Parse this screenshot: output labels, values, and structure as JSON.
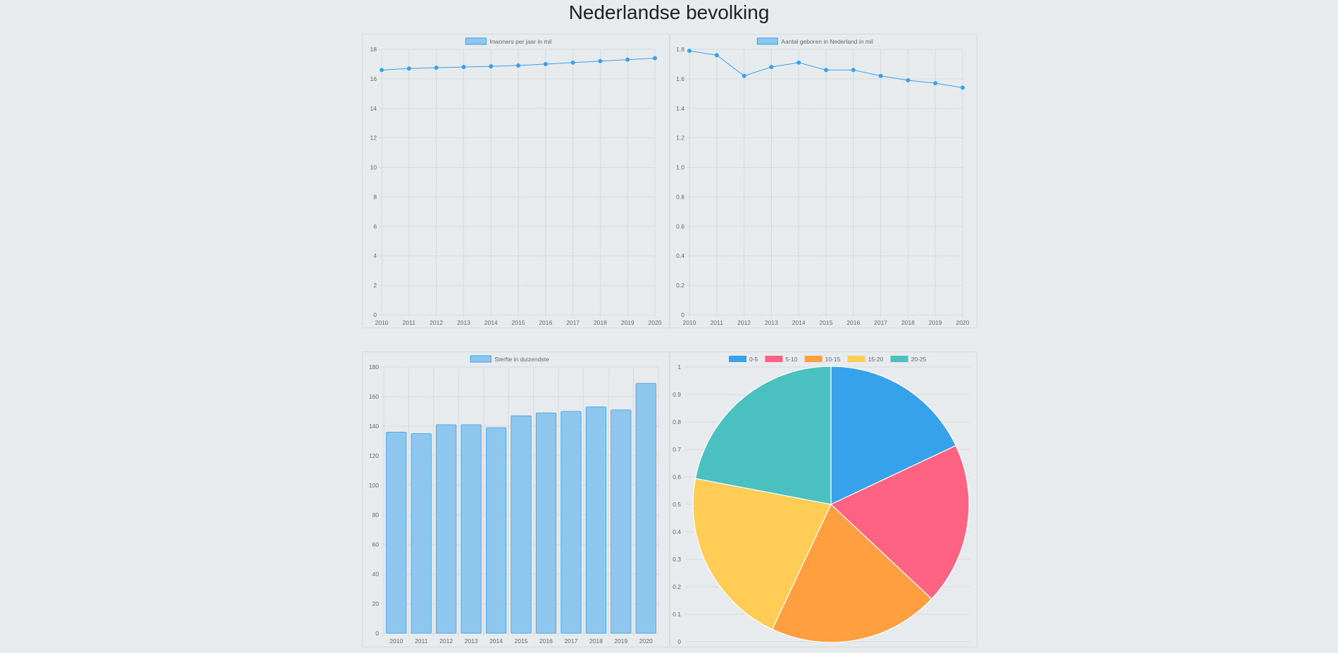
{
  "page": {
    "title": "Nederlandse bevolking"
  },
  "colors": {
    "line": "#36a2eb",
    "bar_fill": "#8fc6ee",
    "bar_stroke": "#36a2eb",
    "grid": "#d7dadd",
    "tick_text": "#666666"
  },
  "chart_data": [
    {
      "type": "line",
      "legend": "Inwoners per jaar in mil",
      "x": [
        "2010",
        "2011",
        "2012",
        "2013",
        "2014",
        "2015",
        "2016",
        "2017",
        "2018",
        "2019",
        "2020"
      ],
      "series": [
        {
          "name": "Inwoners per jaar in mil",
          "values": [
            16.6,
            16.7,
            16.75,
            16.8,
            16.85,
            16.9,
            17.0,
            17.1,
            17.2,
            17.3,
            17.4
          ]
        }
      ],
      "ylim": [
        0,
        18
      ],
      "yticks": [
        "0",
        "2",
        "4",
        "6",
        "8",
        "10",
        "12",
        "14",
        "16",
        "18"
      ],
      "grid": true,
      "legend_position": "top"
    },
    {
      "type": "line",
      "legend": "Aantal geboren in Nederland in mil",
      "x": [
        "2010",
        "2011",
        "2012",
        "2013",
        "2014",
        "2015",
        "2016",
        "2017",
        "2018",
        "2019",
        "2020"
      ],
      "series": [
        {
          "name": "Aantal geboren in Nederland in mil",
          "values": [
            1.79,
            1.76,
            1.62,
            1.68,
            1.71,
            1.66,
            1.66,
            1.62,
            1.59,
            1.57,
            1.54
          ]
        }
      ],
      "ylim": [
        0,
        1.8
      ],
      "yticks": [
        "0",
        "0.2",
        "0.4",
        "0.6",
        "0.8",
        "1.0",
        "1.2",
        "1.4",
        "1.6",
        "1.8"
      ],
      "grid": true,
      "legend_position": "top"
    },
    {
      "type": "bar",
      "legend": "Sterfte in duizendste",
      "categories": [
        "2010",
        "2011",
        "2012",
        "2013",
        "2014",
        "2015",
        "2016",
        "2017",
        "2018",
        "2019",
        "2020"
      ],
      "series": [
        {
          "name": "Sterfte in duizendste",
          "values": [
            136,
            135,
            141,
            141,
            139,
            147,
            149,
            150,
            153,
            151,
            169
          ]
        }
      ],
      "ylim": [
        0,
        180
      ],
      "yticks": [
        "0",
        "20",
        "40",
        "60",
        "80",
        "100",
        "120",
        "140",
        "160",
        "180"
      ],
      "grid": true,
      "legend_position": "top"
    },
    {
      "type": "pie",
      "categories": [
        "0-5",
        "5-10",
        "10-15",
        "15-20",
        "20-25"
      ],
      "values": [
        18,
        19,
        20,
        21,
        22
      ],
      "colors": [
        "#36a2eb",
        "#ff6384",
        "#ff9f40",
        "#ffcd56",
        "#4bc0c0"
      ],
      "yticks": [
        "0",
        "0.1",
        "0.2",
        "0.3",
        "0.4",
        "0.5",
        "0.6",
        "0.7",
        "0.8",
        "0.9",
        "1"
      ],
      "grid": true,
      "legend_position": "top"
    }
  ]
}
